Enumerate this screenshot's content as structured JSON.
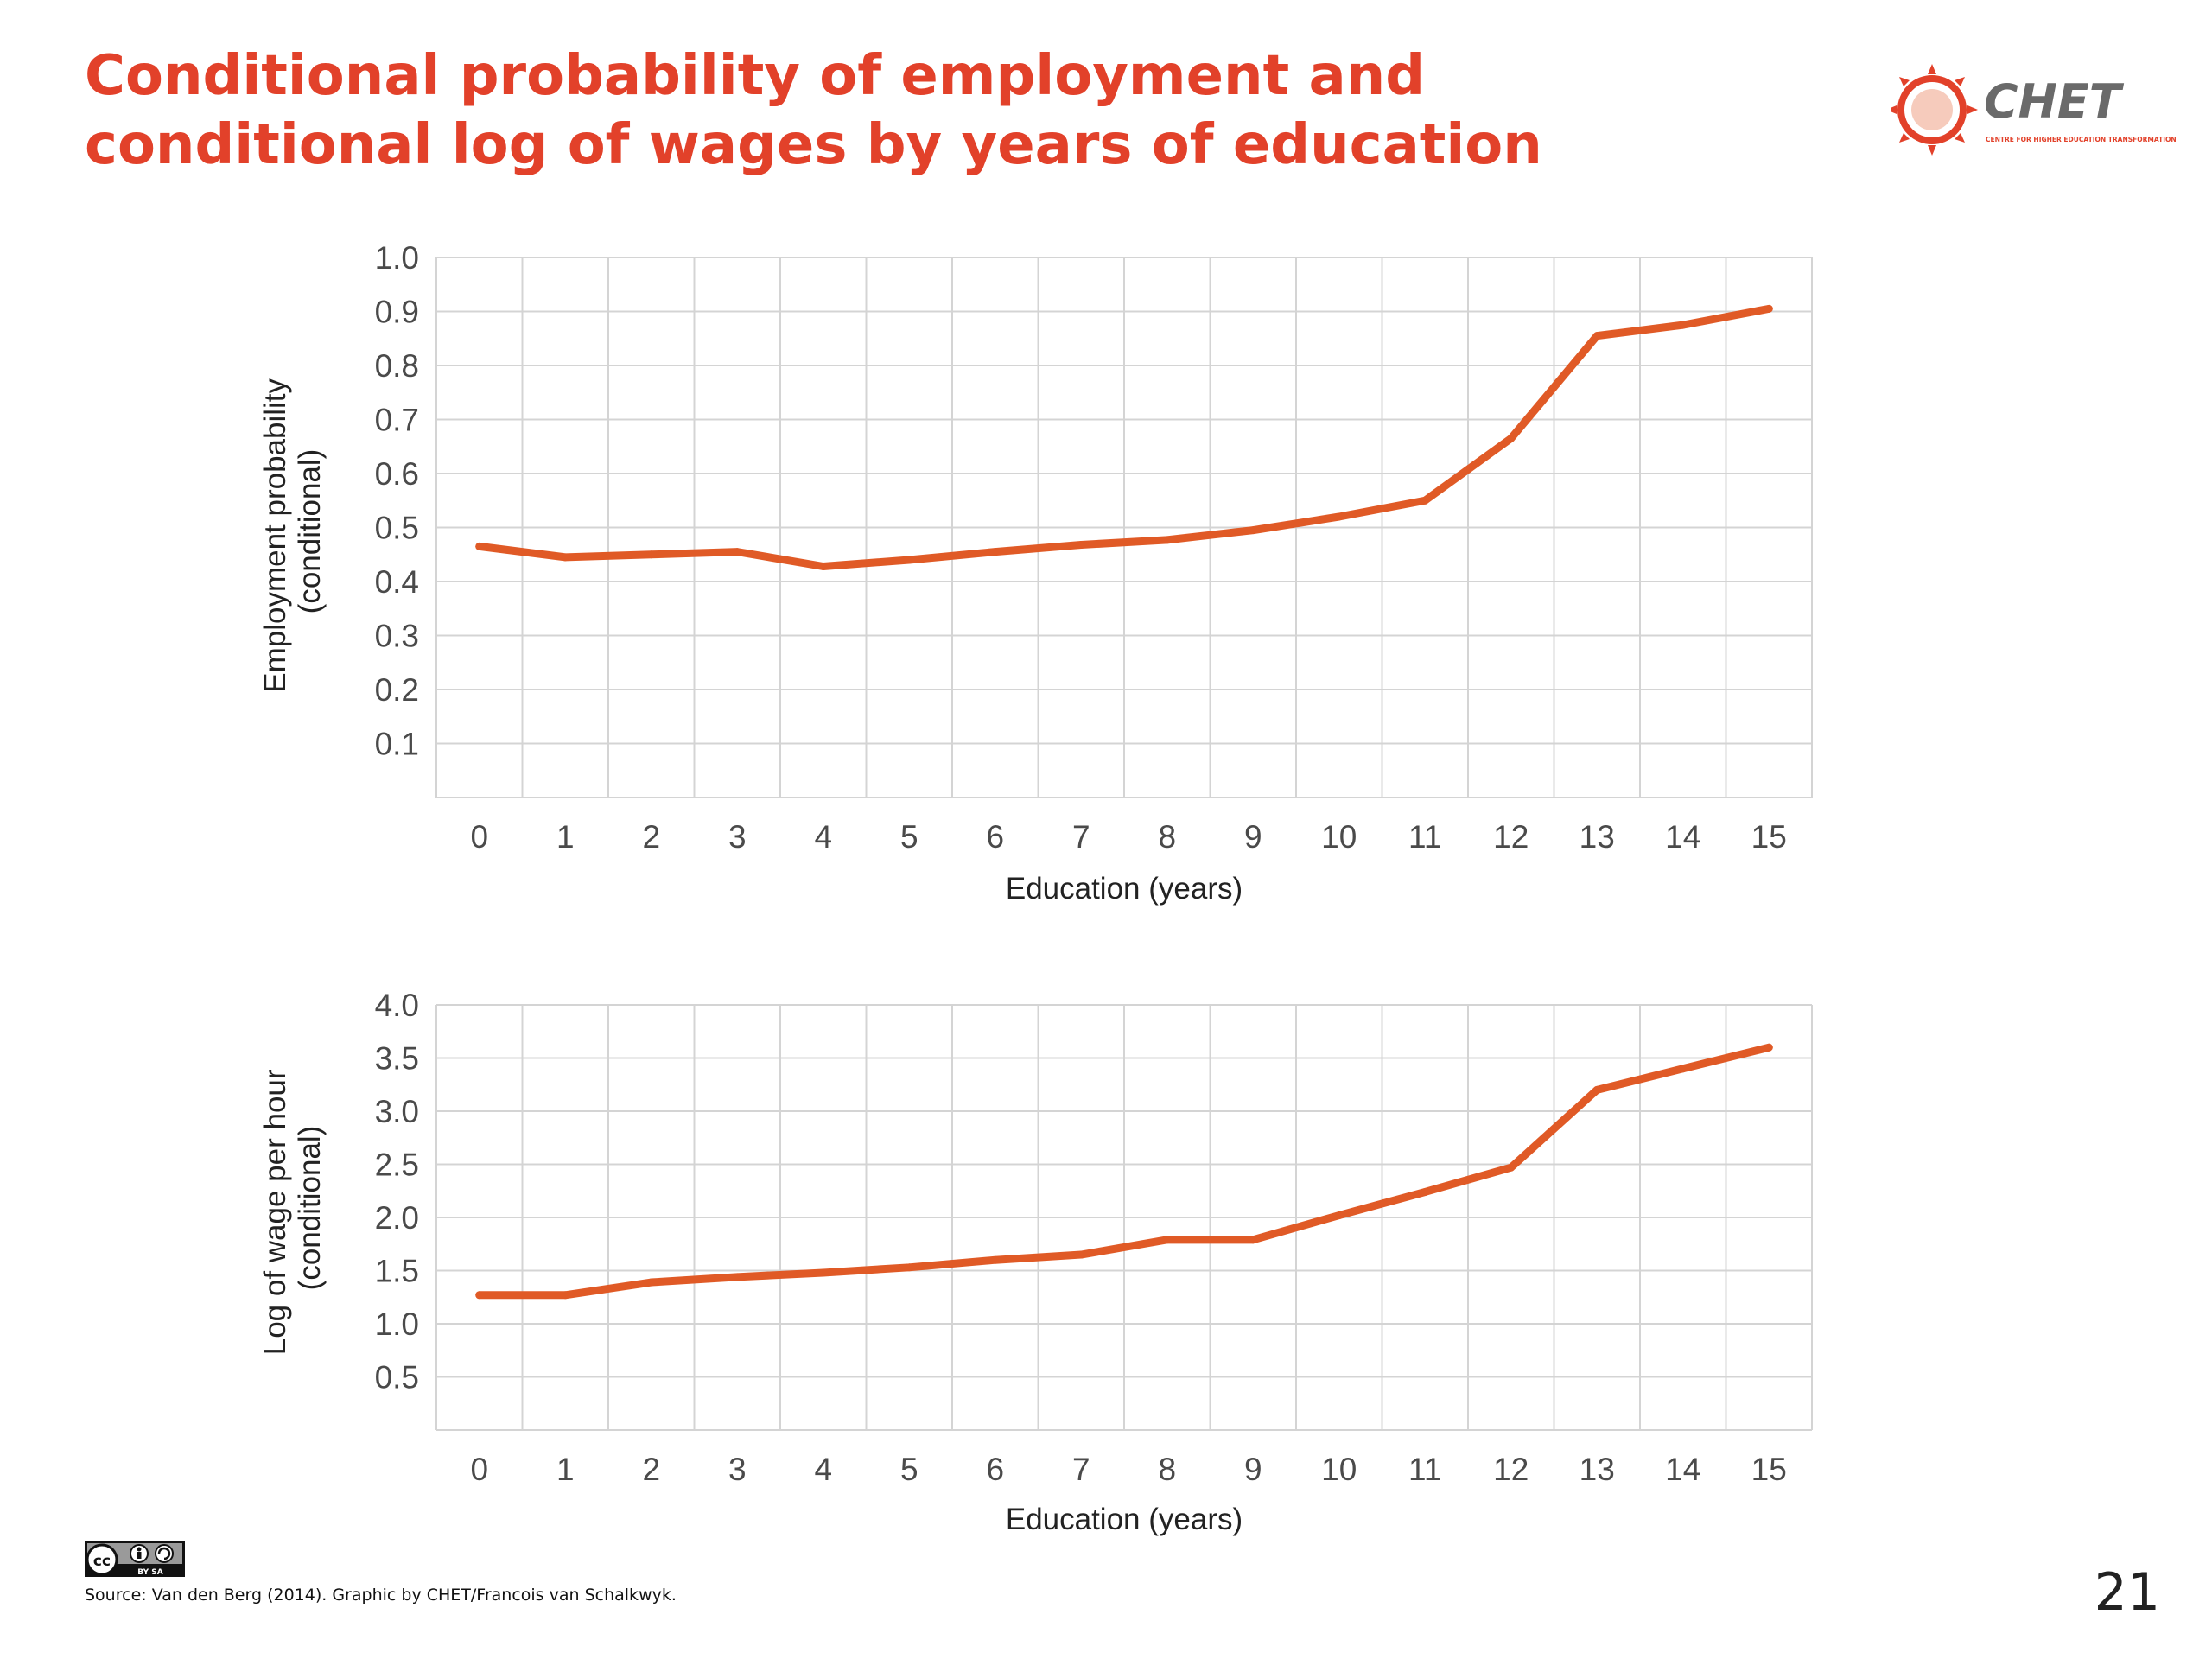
{
  "slide": {
    "title_line1": "Conditional probability of employment and",
    "title_line2": "conditional log of wages by years of education",
    "logo_text": "CHET",
    "logo_subtext": "CENTRE FOR HIGHER EDUCATION TRANSFORMATION",
    "source": "Source: Van den Berg (2014). Graphic by CHET/Francois van Schalkwyk.",
    "page_number": "21",
    "license_badge": "BY SA"
  },
  "colors": {
    "title": "#e2412a",
    "line": "#e05a26",
    "grid": "#d4d4d4",
    "tick_text": "#4a4a4a"
  },
  "icons": {
    "logo": "chet-sun-logo-icon",
    "license": "creative-commons-by-sa-icon"
  },
  "chart_data": [
    {
      "type": "line",
      "xlabel": "Education (years)",
      "ylabel_line1": "Employment probability",
      "ylabel_line2": "(conditional)",
      "x": [
        0,
        1,
        2,
        3,
        4,
        5,
        6,
        7,
        8,
        9,
        10,
        11,
        12,
        13,
        14,
        15
      ],
      "x_ticks": [
        "0",
        "1",
        "2",
        "3",
        "4",
        "5",
        "6",
        "7",
        "8",
        "9",
        "10",
        "11",
        "12",
        "13",
        "14",
        "15"
      ],
      "y_ticks": [
        "0.1",
        "0.2",
        "0.3",
        "0.4",
        "0.5",
        "0.6",
        "0.7",
        "0.8",
        "0.9",
        "1.0"
      ],
      "ylim": [
        0,
        1.0
      ],
      "grid": true,
      "series": [
        {
          "values": [
            0.465,
            0.445,
            0.45,
            0.455,
            0.428,
            0.44,
            0.455,
            0.468,
            0.477,
            0.495,
            0.52,
            0.55,
            0.665,
            0.855,
            0.875,
            0.905
          ]
        }
      ]
    },
    {
      "type": "line",
      "xlabel": "Education (years)",
      "ylabel_line1": "Log of wage per hour",
      "ylabel_line2": "(conditional)",
      "x": [
        0,
        1,
        2,
        3,
        4,
        5,
        6,
        7,
        8,
        9,
        10,
        11,
        12,
        13,
        14,
        15
      ],
      "x_ticks": [
        "0",
        "1",
        "2",
        "3",
        "4",
        "5",
        "6",
        "7",
        "8",
        "9",
        "10",
        "11",
        "12",
        "13",
        "14",
        "15"
      ],
      "y_ticks": [
        "0.5",
        "1.0",
        "1.5",
        "2.0",
        "2.5",
        "3.0",
        "3.5",
        "4.0"
      ],
      "ylim": [
        0,
        4.0
      ],
      "grid": true,
      "series": [
        {
          "values": [
            1.27,
            1.27,
            1.39,
            1.44,
            1.48,
            1.53,
            1.6,
            1.65,
            1.79,
            1.79,
            2.02,
            2.24,
            2.47,
            3.2,
            3.4,
            3.6
          ]
        }
      ]
    }
  ]
}
